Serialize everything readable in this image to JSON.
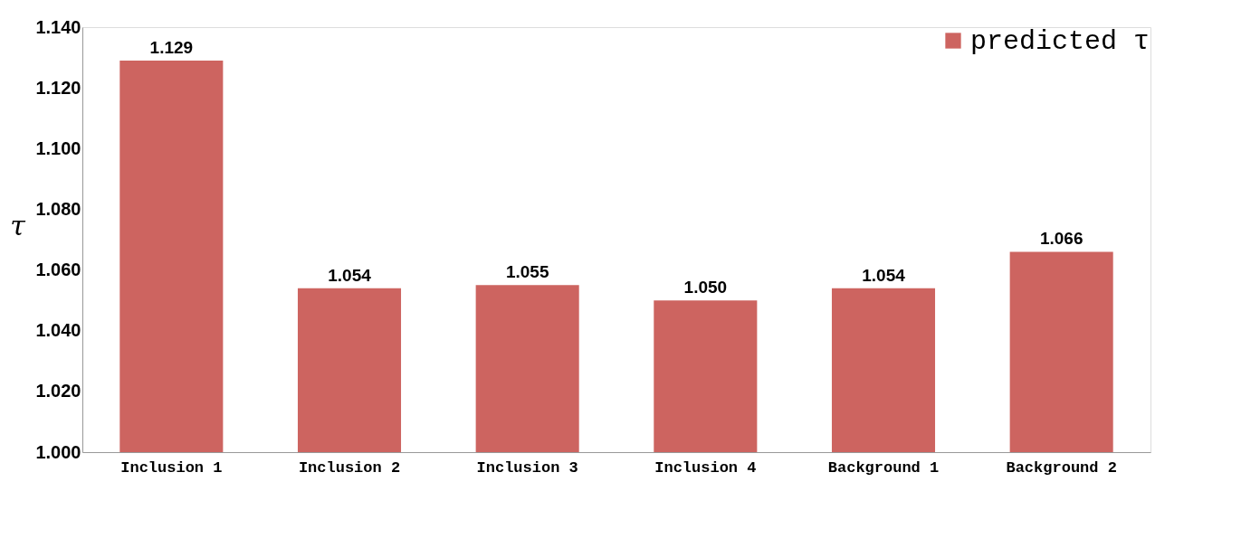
{
  "chart_data": {
    "type": "bar",
    "ylabel": "τ",
    "categories": [
      "Inclusion 1",
      "Inclusion 2",
      "Inclusion 3",
      "Inclusion 4",
      "Background 1",
      "Background 2"
    ],
    "series": [
      {
        "name": "predicted τ",
        "color": "#cd6460",
        "values": [
          1.129,
          1.054,
          1.055,
          1.05,
          1.054,
          1.066
        ],
        "value_labels": [
          "1.129",
          "1.054",
          "1.055",
          "1.050",
          "1.054",
          "1.066"
        ]
      }
    ],
    "ylim": [
      1.0,
      1.14
    ],
    "yticks": [
      {
        "value": 1.0,
        "label": "1.000"
      },
      {
        "value": 1.02,
        "label": "1.020"
      },
      {
        "value": 1.04,
        "label": "1.040"
      },
      {
        "value": 1.06,
        "label": "1.060"
      },
      {
        "value": 1.08,
        "label": "1.080"
      },
      {
        "value": 1.1,
        "label": "1.100"
      },
      {
        "value": 1.12,
        "label": "1.120"
      },
      {
        "value": 1.14,
        "label": "1.140"
      }
    ],
    "grid": false,
    "legend": "top right"
  }
}
